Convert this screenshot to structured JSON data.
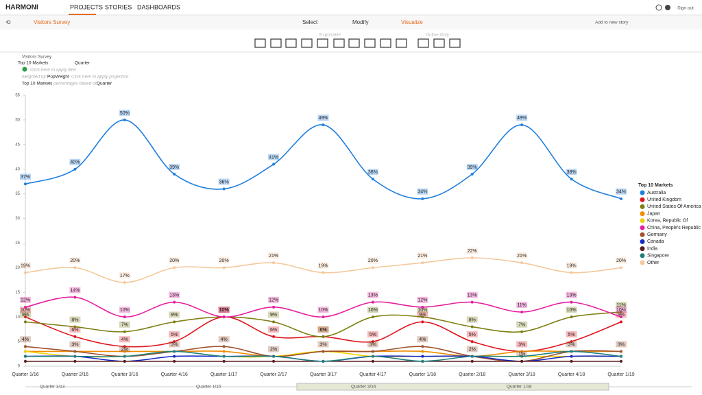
{
  "header": {
    "logo": "HARMONI",
    "nav": [
      "PROJECTS",
      "STORIES",
      "DASHBOARDS"
    ],
    "signout": "Sign out"
  },
  "subbar": {
    "project": "Visitors Survey",
    "modes": [
      "Select",
      "Modify",
      "Visualize"
    ],
    "story": "Add to new story"
  },
  "toolbar": {
    "exportable": "Exportable",
    "online": "Online Only"
  },
  "table_info": {
    "name": "Visitors Survey",
    "row_var": "Top 10 Markets",
    "col_var": "Quarter",
    "filter": "Click here to apply filter",
    "weighted_label": "weighted by:",
    "weight": "PopWeight",
    "projection": "Click here to apply projection",
    "basis_var": "Top 10 Markets",
    "basis_text": "percentages based on",
    "basis_col": "Quarter"
  },
  "scroller": [
    "Quarter 3/13",
    "Quarter 1/15",
    "Quarter 3/16",
    "Quarter 1/18"
  ],
  "chart_data": {
    "type": "line",
    "legend_title": "Top 10 Markets",
    "categories": [
      "Quarter 1/16",
      "Quarter 2/16",
      "Quarter 3/16",
      "Quarter 4/16",
      "Quarter 1/17",
      "Quarter 2/17",
      "Quarter 3/17",
      "Quarter 4/17",
      "Quarter 1/18",
      "Quarter 2/18",
      "Quarter 3/18",
      "Quarter 4/18",
      "Quarter 1/19"
    ],
    "ylim": [
      0,
      55
    ],
    "yticks": [
      0,
      5,
      10,
      15,
      20,
      25,
      30,
      35,
      40,
      45,
      50,
      55
    ],
    "series": [
      {
        "name": "Australia",
        "color": "#1e7fe0",
        "values": [
          37,
          40,
          50,
          39,
          36,
          41,
          49,
          38,
          34,
          39,
          49,
          38,
          34
        ],
        "value_labels": [
          "37%",
          "40%",
          "50%",
          "39%",
          "36%",
          "41%",
          "49%",
          "38%",
          "34%",
          "39%",
          "49%",
          "38%",
          "34%"
        ]
      },
      {
        "name": "United Kingdom",
        "color": "#e0141e",
        "values": [
          10,
          6,
          4,
          5,
          10,
          6,
          6,
          5,
          9,
          5,
          3,
          5,
          9
        ],
        "value_labels": [
          "10%",
          "6%",
          "4%",
          "5%",
          "10%",
          "6%",
          "6%",
          "5%",
          "9%",
          "5%",
          "3%",
          "5%",
          "9%"
        ]
      },
      {
        "name": "United States Of America",
        "color": "#7f7f14",
        "values": [
          9,
          8,
          7,
          9,
          10,
          9,
          6,
          10,
          10,
          8,
          7,
          10,
          11
        ],
        "value_labels": [
          "9%",
          "8%",
          "7%",
          "9%",
          "10%",
          "9%",
          "6%",
          "10%",
          "10%",
          "8%",
          "7%",
          "10%",
          "11%"
        ]
      },
      {
        "name": "Japan",
        "color": "#f08c00",
        "values": [
          3,
          3,
          3,
          3,
          3,
          2,
          3,
          3,
          3,
          2,
          3,
          3,
          3
        ]
      },
      {
        "name": "Korea, Republic Of",
        "color": "#f0d000",
        "values": [
          3,
          2,
          2,
          3,
          2,
          2,
          3,
          2,
          2,
          2,
          2,
          2,
          2
        ]
      },
      {
        "name": "China, People's Republic Of",
        "color": "#e61ea0",
        "values": [
          12,
          14,
          10,
          13,
          10,
          12,
          10,
          13,
          12,
          13,
          11,
          13,
          10
        ],
        "value_labels": [
          "12%",
          "14%",
          "10%",
          "13%",
          "10%",
          "12%",
          "10%",
          "13%",
          "12%",
          "13%",
          "11%",
          "13%",
          "10%"
        ]
      },
      {
        "name": "Germany",
        "color": "#a0522d",
        "values": [
          4,
          3,
          2,
          3,
          4,
          2,
          3,
          3,
          4,
          2,
          1,
          3,
          3
        ],
        "value_labels": [
          "4%",
          "3%",
          "2%",
          "3%",
          "4%",
          "2%",
          "3%",
          "3%",
          "4%",
          "2%",
          "1%",
          "3%",
          "3%"
        ]
      },
      {
        "name": "Canada",
        "color": "#1428c8",
        "values": [
          2,
          2,
          1,
          2,
          2,
          2,
          1,
          2,
          2,
          2,
          1,
          2,
          2
        ]
      },
      {
        "name": "India",
        "color": "#5a1e1e",
        "values": [
          1,
          1,
          1,
          1,
          1,
          1,
          1,
          1,
          1,
          1,
          1,
          1,
          1
        ]
      },
      {
        "name": "Singapore",
        "color": "#1e7f7f",
        "values": [
          2,
          2,
          2,
          3,
          2,
          2,
          1,
          2,
          1,
          2,
          2,
          3,
          2
        ]
      },
      {
        "name": "Other",
        "color": "#f5c89a",
        "values": [
          19,
          20,
          17,
          20,
          20,
          21,
          19,
          20,
          21,
          22,
          21,
          19,
          20
        ],
        "value_labels": [
          "19%",
          "20%",
          "17%",
          "20%",
          "20%",
          "21%",
          "19%",
          "20%",
          "21%",
          "22%",
          "21%",
          "19%",
          "20%"
        ]
      }
    ]
  }
}
